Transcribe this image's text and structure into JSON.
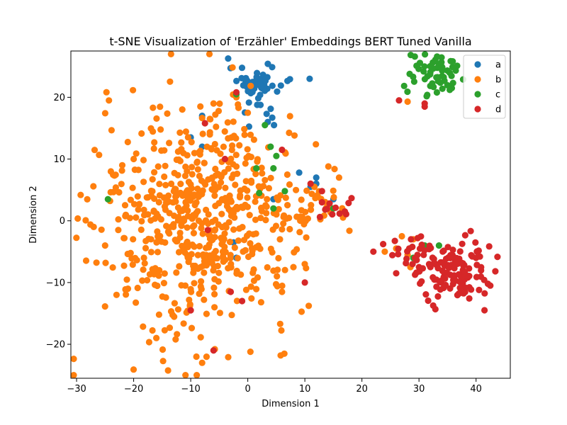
{
  "chart_data": {
    "type": "scatter",
    "title": "t-SNE Visualization of 'Erzähler' Embeddings BERT Tuned Vanilla",
    "xlabel": "Dimension 1",
    "ylabel": "Dimension 2",
    "xlim": [
      -31,
      46
    ],
    "ylim": [
      -25.5,
      27.5
    ],
    "xticks": [
      -30,
      -20,
      -10,
      0,
      10,
      20,
      30,
      40
    ],
    "yticks": [
      -20,
      -10,
      0,
      10,
      20
    ],
    "grid": false,
    "legend_position": "top-right",
    "series": [
      {
        "name": "a",
        "color": "#1f77b4",
        "clusters": [
          {
            "center": [
              1.5,
              22.5
            ],
            "spread": [
              2.4,
              1.3
            ],
            "count": 45
          },
          {
            "center": [
              2.5,
              18.5
            ],
            "spread": [
              2.8,
              2.0
            ],
            "count": 12
          }
        ],
        "points": [
          [
            -8,
            17
          ],
          [
            -10,
            13.5
          ],
          [
            -8,
            12
          ],
          [
            -2.5,
            -3.5
          ],
          [
            -2,
            -6
          ],
          [
            3.5,
            16
          ],
          [
            4.5,
            3.5
          ],
          [
            11,
            5.5
          ],
          [
            12,
            7
          ],
          [
            9,
            7.8
          ],
          [
            15,
            3.5
          ],
          [
            12,
            6
          ]
        ]
      },
      {
        "name": "b",
        "color": "#ff7f0e",
        "clusters": [
          {
            "center": [
              -9,
              0
            ],
            "spread": [
              8.5,
              9.2
            ],
            "count": 560
          },
          {
            "center": [
              2,
              5
            ],
            "spread": [
              5,
              7
            ],
            "count": 60
          },
          {
            "center": [
              11,
              2
            ],
            "spread": [
              2.8,
              2.2
            ],
            "count": 30
          }
        ],
        "points": [
          [
            -27,
            -1
          ],
          [
            -25,
            -4
          ],
          [
            -24,
            8
          ],
          [
            -23,
            -12
          ],
          [
            -22,
            9
          ],
          [
            -21,
            -11
          ],
          [
            -20,
            10
          ],
          [
            16,
            7
          ],
          [
            6,
            -11.5
          ],
          [
            8,
            -7.5
          ],
          [
            -8,
            -23
          ],
          [
            -9,
            -22
          ],
          [
            0,
            17.5
          ],
          [
            -2,
            20
          ],
          [
            -6,
            19
          ],
          [
            28,
            19.3
          ],
          [
            26,
            -4.5
          ],
          [
            27,
            -2.5
          ],
          [
            29,
            -3
          ],
          [
            28.5,
            -7.5
          ],
          [
            24,
            -5
          ],
          [
            28,
            -5.5
          ]
        ]
      },
      {
        "name": "c",
        "color": "#2ca02c",
        "clusters": [
          {
            "center": [
              32.5,
              23.8
            ],
            "spread": [
              2.1,
              1.8
            ],
            "count": 58
          }
        ],
        "points": [
          [
            -24.5,
            3.5
          ],
          [
            -2,
            20.5
          ],
          [
            1.5,
            8.5
          ],
          [
            2,
            4.5
          ],
          [
            3,
            15.5
          ],
          [
            4,
            12
          ],
          [
            4.5,
            8.5
          ],
          [
            5,
            10.5
          ],
          [
            6.5,
            4.8
          ],
          [
            4.5,
            2
          ],
          [
            15,
            2
          ],
          [
            33.5,
            -4
          ],
          [
            29,
            -6
          ],
          [
            31,
            -4
          ]
        ]
      },
      {
        "name": "d",
        "color": "#d62728",
        "clusters": [
          {
            "center": [
              36.5,
              -8.3
            ],
            "spread": [
              3.2,
              2.3
            ],
            "count": 120
          },
          {
            "center": [
              28.5,
              -5.5
            ],
            "spread": [
              2.6,
              2.0
            ],
            "count": 28
          },
          {
            "center": [
              15,
              2
            ],
            "spread": [
              1.8,
              1.0
            ],
            "count": 10
          }
        ],
        "points": [
          [
            -7.5,
            15.8
          ],
          [
            -4,
            10
          ],
          [
            -7,
            -1.5
          ],
          [
            -10,
            -14.5
          ],
          [
            -3,
            -11.5
          ],
          [
            -6,
            -21
          ],
          [
            -1,
            -13
          ],
          [
            -2,
            20.8
          ],
          [
            6,
            11.5
          ],
          [
            10,
            -10
          ],
          [
            13,
            4.8
          ],
          [
            11,
            6
          ],
          [
            13,
            3
          ],
          [
            17,
            1.5
          ],
          [
            26.5,
            19.5
          ],
          [
            31,
            18.5
          ],
          [
            31,
            19
          ],
          [
            22,
            -5
          ],
          [
            26,
            -8.5
          ],
          [
            30,
            -7.5
          ],
          [
            40,
            -6
          ],
          [
            42.5,
            -10.5
          ]
        ]
      }
    ]
  }
}
